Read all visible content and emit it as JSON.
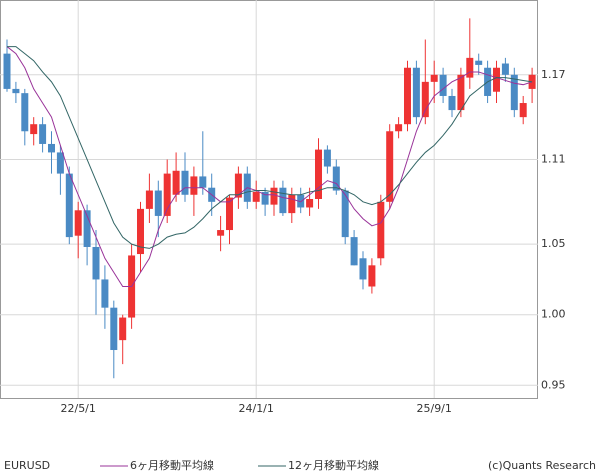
{
  "chart_data": {
    "type": "candlestick",
    "title": "EURUSD",
    "credit": "(c)Quants Research",
    "categories": [
      null,
      null,
      null,
      null,
      null,
      null,
      null,
      null,
      "22/5/1",
      null,
      null,
      null,
      null,
      null,
      null,
      null,
      null,
      null,
      null,
      null,
      null,
      null,
      null,
      null,
      null,
      null,
      null,
      null,
      "24/1/1",
      null,
      null,
      null,
      null,
      null,
      null,
      null,
      null,
      null,
      null,
      null,
      null,
      null,
      null,
      null,
      null,
      null,
      null,
      null,
      "25/9/1",
      null,
      null,
      null,
      null,
      null,
      null,
      null,
      null,
      null,
      null,
      null
    ],
    "open": [
      1.185,
      1.16,
      1.157,
      1.128,
      1.135,
      1.121,
      1.115,
      1.1,
      1.056,
      1.074,
      1.048,
      1.025,
      1.005,
      0.982,
      0.998,
      1.043,
      1.075,
      1.088,
      1.07,
      1.085,
      1.102,
      1.085,
      1.098,
      1.09,
      1.056,
      1.06,
      1.083,
      1.1,
      1.08,
      1.087,
      1.078,
      1.09,
      1.072,
      1.085,
      1.076,
      1.082,
      1.117,
      1.105,
      1.088,
      1.055,
      1.04,
      1.02,
      1.04,
      1.08,
      1.13,
      1.135,
      1.175,
      1.14,
      1.165,
      1.17,
      1.155,
      1.145,
      1.168,
      1.18,
      1.175,
      1.158,
      1.178,
      1.17,
      1.14,
      1.16
    ],
    "high": [
      1.195,
      1.165,
      1.16,
      1.14,
      1.14,
      1.13,
      1.12,
      1.105,
      1.08,
      1.078,
      1.06,
      1.035,
      1.01,
      1.0,
      1.05,
      1.08,
      1.1,
      1.095,
      1.11,
      1.115,
      1.115,
      1.105,
      1.13,
      1.1,
      1.07,
      1.085,
      1.105,
      1.105,
      1.095,
      1.09,
      1.095,
      1.095,
      1.09,
      1.09,
      1.09,
      1.125,
      1.12,
      1.11,
      1.09,
      1.06,
      1.045,
      1.04,
      1.085,
      1.135,
      1.14,
      1.18,
      1.18,
      1.195,
      1.18,
      1.175,
      1.16,
      1.175,
      1.21,
      1.185,
      1.18,
      1.18,
      1.182,
      1.175,
      1.155,
      1.175
    ],
    "low": [
      1.158,
      1.15,
      1.12,
      1.12,
      1.115,
      1.1,
      1.085,
      1.05,
      1.04,
      1.035,
      1.0,
      0.99,
      0.955,
      0.965,
      0.99,
      1.03,
      1.065,
      1.055,
      1.065,
      1.08,
      1.08,
      1.07,
      1.085,
      1.07,
      1.045,
      1.05,
      1.075,
      1.075,
      1.075,
      1.07,
      1.07,
      1.07,
      1.065,
      1.072,
      1.07,
      1.075,
      1.1,
      1.085,
      1.05,
      1.035,
      1.018,
      1.015,
      1.035,
      1.075,
      1.125,
      1.13,
      1.135,
      1.135,
      1.15,
      1.15,
      1.14,
      1.14,
      1.16,
      1.17,
      1.15,
      1.15,
      1.165,
      1.14,
      1.135,
      1.15
    ],
    "close": [
      1.16,
      1.157,
      1.13,
      1.135,
      1.121,
      1.115,
      1.1,
      1.055,
      1.074,
      1.048,
      1.025,
      1.005,
      0.975,
      0.998,
      1.042,
      1.075,
      1.088,
      1.07,
      1.1,
      1.102,
      1.085,
      1.098,
      1.09,
      1.08,
      1.06,
      1.083,
      1.1,
      1.08,
      1.087,
      1.078,
      1.09,
      1.072,
      1.085,
      1.076,
      1.082,
      1.117,
      1.105,
      1.088,
      1.055,
      1.035,
      1.025,
      1.035,
      1.08,
      1.13,
      1.135,
      1.175,
      1.14,
      1.165,
      1.17,
      1.155,
      1.145,
      1.17,
      1.182,
      1.177,
      1.155,
      1.175,
      1.17,
      1.145,
      1.15,
      1.17
    ],
    "up_color": "#ee3333",
    "down_color": "#4a8ac4",
    "series": [
      {
        "name": "6ヶ月移動平均線",
        "color": "#993399",
        "values": [
          1.19,
          1.185,
          1.175,
          1.16,
          1.15,
          1.14,
          1.12,
          1.1,
          1.085,
          1.07,
          1.055,
          1.04,
          1.03,
          1.02,
          1.02,
          1.03,
          1.04,
          1.06,
          1.075,
          1.085,
          1.09,
          1.09,
          1.09,
          1.085,
          1.08,
          1.08,
          1.085,
          1.09,
          1.088,
          1.085,
          1.085,
          1.083,
          1.082,
          1.08,
          1.085,
          1.09,
          1.095,
          1.093,
          1.085,
          1.075,
          1.068,
          1.063,
          1.065,
          1.075,
          1.09,
          1.11,
          1.13,
          1.145,
          1.155,
          1.16,
          1.165,
          1.168,
          1.172,
          1.172,
          1.17,
          1.168,
          1.166,
          1.164,
          1.163,
          1.165
        ]
      },
      {
        "name": "12ヶ月移動平均線",
        "color": "#336666",
        "values": [
          1.19,
          1.19,
          1.185,
          1.18,
          1.172,
          1.165,
          1.155,
          1.14,
          1.125,
          1.11,
          1.095,
          1.08,
          1.065,
          1.055,
          1.05,
          1.048,
          1.047,
          1.05,
          1.055,
          1.057,
          1.058,
          1.062,
          1.068,
          1.075,
          1.08,
          1.085,
          1.085,
          1.087,
          1.088,
          1.088,
          1.087,
          1.086,
          1.085,
          1.085,
          1.087,
          1.088,
          1.09,
          1.09,
          1.088,
          1.085,
          1.08,
          1.078,
          1.08,
          1.085,
          1.092,
          1.1,
          1.108,
          1.115,
          1.12,
          1.127,
          1.135,
          1.145,
          1.155,
          1.16,
          1.165,
          1.168,
          1.168,
          1.167,
          1.166,
          1.165
        ]
      }
    ],
    "ylim": [
      0.941,
      1.223
    ],
    "yticks": [
      0.95,
      {
        "value": 1,
        "label": "1.00"
      },
      1.05,
      1.11,
      1.17
    ],
    "grid": true
  }
}
